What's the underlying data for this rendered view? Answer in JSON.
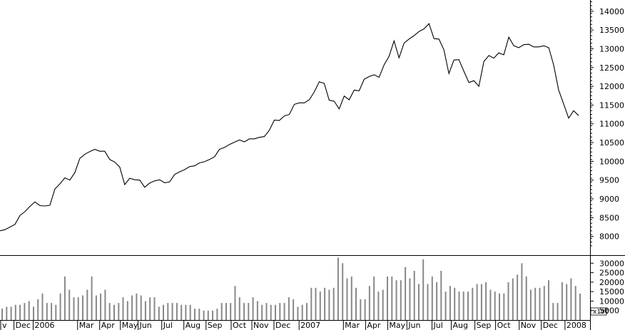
{
  "chart_data": {
    "type": "line",
    "price": {
      "values": [
        8150,
        8180,
        8250,
        8320,
        8560,
        8660,
        8800,
        8920,
        8820,
        8810,
        8830,
        9260,
        9400,
        9560,
        9500,
        9700,
        10080,
        10190,
        10260,
        10320,
        10270,
        10270,
        10050,
        9980,
        9850,
        9380,
        9550,
        9510,
        9500,
        9310,
        9420,
        9480,
        9510,
        9430,
        9450,
        9650,
        9720,
        9780,
        9860,
        9880,
        9960,
        9990,
        10050,
        10120,
        10320,
        10370,
        10450,
        10510,
        10570,
        10520,
        10600,
        10600,
        10640,
        10660,
        10830,
        11100,
        11090,
        11210,
        11250,
        11520,
        11560,
        11560,
        11640,
        11850,
        12120,
        12080,
        11630,
        11600,
        11400,
        11740,
        11640,
        11900,
        11880,
        12190,
        12260,
        12310,
        12240,
        12570,
        12800,
        13210,
        12760,
        13150,
        13260,
        13350,
        13460,
        13530,
        13670,
        13270,
        13260,
        12970,
        12340,
        12700,
        12710,
        12400,
        12100,
        12150,
        12000,
        12660,
        12820,
        12750,
        12890,
        12840,
        13310,
        13080,
        13030,
        13110,
        13120,
        13050,
        13050,
        13080,
        13030,
        12570,
        11900,
        11530,
        11150,
        11350,
        11220
      ],
      "ylim": [
        7500,
        14300
      ],
      "ticks": [
        8000,
        8500,
        9000,
        9500,
        10000,
        10500,
        11000,
        11500,
        12000,
        12500,
        13000,
        13500,
        14000
      ]
    },
    "volume": {
      "values": [
        6,
        7,
        7,
        8,
        8,
        9,
        10,
        7,
        11,
        14,
        9,
        9,
        8,
        14,
        23,
        16,
        12,
        12,
        13,
        16,
        23,
        13,
        14,
        16,
        9,
        8,
        9,
        12,
        10,
        13,
        14,
        13,
        10,
        12,
        12,
        7,
        8,
        9,
        9,
        9,
        8,
        8,
        8,
        6,
        6,
        5,
        5,
        5,
        6,
        9,
        9,
        9,
        18,
        12,
        9,
        9,
        12,
        10,
        8,
        9,
        8,
        8,
        9,
        9,
        12,
        11,
        7,
        8,
        9,
        17,
        17,
        15,
        17,
        16,
        17,
        33,
        30,
        22,
        23,
        17,
        11,
        11,
        18,
        23,
        15,
        16,
        23,
        23,
        21,
        21,
        28,
        22,
        26,
        19,
        32,
        19,
        23,
        20,
        26,
        15,
        18,
        17,
        15,
        15,
        15,
        17,
        19,
        19,
        20,
        16,
        15,
        14,
        14,
        20,
        22,
        24,
        30,
        23,
        16,
        17,
        17,
        18,
        21,
        9,
        9,
        20,
        19,
        22,
        18,
        14
      ],
      "ylim": [
        0,
        33500
      ],
      "ticks": [
        5000,
        10000,
        15000,
        20000,
        25000,
        30000
      ],
      "multiplier_label": "x100"
    },
    "x_labels": [
      {
        "label": "v",
        "pos": 0.0
      },
      {
        "label": "Dec",
        "pos": 4.5
      },
      {
        "label": "2006",
        "pos": 11.0
      },
      {
        "label": "Mar",
        "pos": 26.0
      },
      {
        "label": "Apr",
        "pos": 33.5
      },
      {
        "label": "May",
        "pos": 40.5
      },
      {
        "label": "Jun",
        "pos": 46.5
      },
      {
        "label": "Jul",
        "pos": 54.5
      },
      {
        "label": "Aug",
        "pos": 62.0
      },
      {
        "label": "Sep",
        "pos": 69.5
      },
      {
        "label": "Oct",
        "pos": 78.0
      },
      {
        "label": "Nov",
        "pos": 85.0
      },
      {
        "label": "Dec",
        "pos": 92.5
      },
      {
        "label": "2007",
        "pos": 101.0
      },
      {
        "label": "Mar",
        "pos": 116.0
      },
      {
        "label": "Apr",
        "pos": 123.5
      },
      {
        "label": "May",
        "pos": 131.0
      },
      {
        "label": "Jun",
        "pos": 137.5
      },
      {
        "label": "Jul",
        "pos": 146.0
      },
      {
        "label": "Aug",
        "pos": 152.5
      },
      {
        "label": "Sep",
        "pos": 160.5
      },
      {
        "label": "Oct",
        "pos": 167.5
      },
      {
        "label": "Nov",
        "pos": 175.5
      },
      {
        "label": "Dec",
        "pos": 183.0
      },
      {
        "label": "2008",
        "pos": 191.0
      }
    ],
    "x_count": 200,
    "grid": false,
    "colors": {
      "line": "#000000",
      "bar": "#888888",
      "axis": "#000000"
    }
  }
}
